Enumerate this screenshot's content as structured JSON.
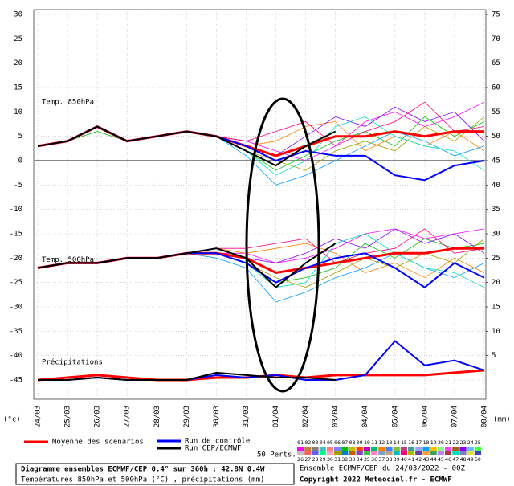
{
  "chart_data": {
    "type": "line",
    "title": "Diagramme ensembles ECMWF/CEP 0.4° sur 360h : 42.8N 0.4W",
    "subtitle": "Températures 850hPa et 500hPa (°C) , précipitations (mm)",
    "run_info": "Ensemble ECMWF/CEP du 24/03/2022 - 00Z",
    "copyright": "Copyright 2022 Meteociel.fr - ECMWF",
    "ylabel": "(°c)",
    "y2label": "(mm)",
    "annotations": [
      "Temp. 850hPa",
      "Temp. 500hPa",
      "Précipitations"
    ],
    "members_title": "50 Perts.",
    "categories": [
      "24/03",
      "25/03",
      "26/03",
      "27/03",
      "28/03",
      "29/03",
      "30/03",
      "31/03",
      "01/04",
      "02/04",
      "03/04",
      "04/04",
      "05/04",
      "06/04",
      "07/04",
      "08/04"
    ],
    "ylim": [
      -45,
      30
    ],
    "yticks": [
      30,
      25,
      20,
      15,
      10,
      5,
      0,
      -5,
      -10,
      -15,
      -20,
      -25,
      -30,
      -35,
      -40,
      -45
    ],
    "y2lim": [
      0,
      75
    ],
    "y2ticks": [
      75,
      70,
      65,
      60,
      55,
      50,
      45,
      40,
      35,
      30,
      25,
      20,
      15,
      10,
      5
    ],
    "grid": true,
    "series": [
      {
        "name": "Moyenne des scénarios",
        "color": "#ff0000",
        "width": 3,
        "values": [
          3,
          4,
          7,
          4,
          5,
          6,
          5,
          3,
          1,
          3,
          5,
          5,
          6,
          5,
          6,
          6
        ]
      },
      {
        "name": "Run de contrôle",
        "color": "#0000ff",
        "width": 2,
        "values": [
          3,
          4,
          7,
          4,
          5,
          6,
          5,
          3,
          0,
          2,
          1,
          1,
          -3,
          -4,
          -1,
          0
        ]
      },
      {
        "name": "Run CEP/ECMWF",
        "color": "#000000",
        "width": 2,
        "values": [
          3,
          4,
          7,
          4,
          5,
          6,
          5,
          2,
          -1,
          3,
          6,
          null,
          null,
          null,
          null,
          null
        ]
      },
      {
        "color": "#ff0000",
        "width": 3,
        "values": [
          -22,
          -21,
          -21,
          -20,
          -20,
          -19,
          -19,
          -20,
          -23,
          -22,
          -21,
          -20,
          -19,
          -19,
          -18,
          -18
        ]
      },
      {
        "color": "#0000ff",
        "width": 2,
        "values": [
          -22,
          -21,
          -21,
          -20,
          -20,
          -19,
          -19,
          -21,
          -25,
          -22,
          -20,
          -19,
          -22,
          -26,
          -21,
          -24
        ]
      },
      {
        "color": "#000000",
        "width": 2,
        "values": [
          -22,
          -21,
          -21,
          -20,
          -20,
          -19,
          -18,
          -20,
          -26,
          -21,
          -17,
          null,
          null,
          null,
          null,
          null
        ]
      },
      {
        "color": "#ff0000",
        "width": 3,
        "axis": "y2",
        "values": [
          0,
          0.5,
          1,
          0.5,
          0,
          0,
          0.5,
          0.5,
          1,
          0.5,
          1,
          1,
          1,
          1,
          1.5,
          2
        ]
      },
      {
        "color": "#0000ff",
        "width": 2,
        "axis": "y2",
        "values": [
          0,
          0,
          0.5,
          0,
          0,
          0,
          1,
          0.5,
          1,
          0,
          0,
          1,
          8,
          3,
          4,
          2
        ]
      },
      {
        "color": "#000000",
        "width": 2,
        "axis": "y2",
        "values": [
          0,
          0,
          0.5,
          0,
          0,
          0,
          1.5,
          1,
          0.5,
          0.5,
          0,
          null,
          null,
          null,
          null,
          null
        ]
      }
    ],
    "perturbations": [
      {
        "color": "#ff00ff",
        "values": [
          3,
          4,
          7,
          4,
          5,
          6,
          5,
          4,
          2,
          0,
          3,
          8,
          10,
          7,
          9,
          12
        ]
      },
      {
        "color": "#00c000",
        "values": [
          3,
          4,
          6,
          4,
          5,
          6,
          5,
          2,
          -2,
          1,
          4,
          6,
          3,
          9,
          5,
          8
        ]
      },
      {
        "color": "#ff8000",
        "values": [
          3,
          4,
          7,
          4,
          5,
          6,
          5,
          3,
          4,
          7,
          8,
          2,
          5,
          3,
          6,
          2
        ]
      },
      {
        "color": "#00a0ff",
        "values": [
          3,
          4,
          7,
          4,
          5,
          6,
          5,
          1,
          -5,
          -3,
          0,
          3,
          6,
          4,
          1,
          3
        ]
      },
      {
        "color": "#8000ff",
        "values": [
          3,
          4,
          7,
          4,
          5,
          6,
          5,
          3,
          1,
          5,
          9,
          7,
          11,
          8,
          10,
          4
        ]
      },
      {
        "color": "#a0a000",
        "values": [
          3,
          4,
          7,
          4,
          5,
          6,
          5,
          2,
          0,
          -2,
          2,
          4,
          2,
          7,
          4,
          9
        ]
      },
      {
        "color": "#ff0080",
        "values": [
          3,
          4,
          7,
          4,
          5,
          6,
          5,
          4,
          6,
          8,
          3,
          6,
          8,
          12,
          6,
          7
        ]
      },
      {
        "color": "#00e0c0",
        "values": [
          3,
          4,
          7,
          4,
          5,
          6,
          5,
          2,
          -3,
          0,
          7,
          9,
          5,
          3,
          2,
          -2
        ]
      },
      {
        "color": "#ff00ff",
        "values": [
          -22,
          -21,
          -21,
          -20,
          -20,
          -19,
          -19,
          -19,
          -21,
          -20,
          -18,
          -15,
          -14,
          -16,
          -15,
          -14
        ]
      },
      {
        "color": "#00c000",
        "values": [
          -22,
          -21,
          -21,
          -20,
          -20,
          -19,
          -19,
          -21,
          -25,
          -24,
          -22,
          -17,
          -20,
          -16,
          -18,
          -17
        ]
      },
      {
        "color": "#ff8000",
        "values": [
          -22,
          -21,
          -21,
          -20,
          -20,
          -19,
          -18,
          -19,
          -18,
          -17,
          -19,
          -23,
          -21,
          -24,
          -20,
          -23
        ]
      },
      {
        "color": "#00a0ff",
        "values": [
          -22,
          -21,
          -21,
          -20,
          -20,
          -19,
          -20,
          -22,
          -29,
          -27,
          -24,
          -22,
          -19,
          -22,
          -24,
          -21
        ]
      },
      {
        "color": "#8000ff",
        "values": [
          -22,
          -21,
          -21,
          -20,
          -20,
          -19,
          -19,
          -20,
          -21,
          -19,
          -16,
          -18,
          -14,
          -17,
          -15,
          -19
        ]
      },
      {
        "color": "#a0a000",
        "values": [
          -22,
          -21,
          -21,
          -20,
          -20,
          -19,
          -19,
          -21,
          -24,
          -26,
          -23,
          -20,
          -22,
          -19,
          -21,
          -16
        ]
      },
      {
        "color": "#ff0080",
        "values": [
          -22,
          -21,
          -21,
          -20,
          -20,
          -19,
          -18,
          -18,
          -17,
          -16,
          -21,
          -19,
          -18,
          -14,
          -19,
          -18
        ]
      },
      {
        "color": "#00e0c0",
        "values": [
          -22,
          -21,
          -21,
          -20,
          -20,
          -19,
          -19,
          -21,
          -26,
          -25,
          -17,
          -15,
          -19,
          -22,
          -23,
          -26
        ]
      }
    ],
    "members": [
      {
        "label": "01",
        "color": "#ff00ff"
      },
      {
        "label": "02",
        "color": "#c08040"
      },
      {
        "label": "03",
        "color": "#808080"
      },
      {
        "label": "04",
        "color": "#40c0c0"
      },
      {
        "label": "05",
        "color": "#ff8080"
      },
      {
        "label": "06",
        "color": "#8080ff"
      },
      {
        "label": "07",
        "color": "#00c000"
      },
      {
        "label": "08",
        "color": "#c0c000"
      },
      {
        "label": "09",
        "color": "#ff4000"
      },
      {
        "label": "10",
        "color": "#c000c0"
      },
      {
        "label": "11",
        "color": "#00c080"
      },
      {
        "label": "12",
        "color": "#ff8000"
      },
      {
        "label": "13",
        "color": "#4080ff"
      },
      {
        "label": "14",
        "color": "#80c040"
      },
      {
        "label": "15",
        "color": "#c04080"
      },
      {
        "label": "16",
        "color": "#40a0a0"
      },
      {
        "label": "17",
        "color": "#a0a0ff"
      },
      {
        "label": "18",
        "color": "#00a0ff"
      },
      {
        "label": "19",
        "color": "#ffc000"
      },
      {
        "label": "20",
        "color": "#80ff80"
      },
      {
        "label": "21",
        "color": "#ff40ff"
      },
      {
        "label": "22",
        "color": "#a06020"
      },
      {
        "label": "23",
        "color": "#8000ff"
      },
      {
        "label": "24",
        "color": "#60c0ff"
      },
      {
        "label": "25",
        "color": "#40ff40"
      },
      {
        "label": "26",
        "color": "#c0c0c0"
      },
      {
        "label": "27",
        "color": "#ff6060"
      },
      {
        "label": "28",
        "color": "#6060ff"
      },
      {
        "label": "29",
        "color": "#00ff80"
      },
      {
        "label": "30",
        "color": "#ffa0c0"
      },
      {
        "label": "31",
        "color": "#a0a000"
      },
      {
        "label": "32",
        "color": "#0080c0"
      },
      {
        "label": "33",
        "color": "#c06000"
      },
      {
        "label": "34",
        "color": "#8040c0"
      },
      {
        "label": "35",
        "color": "#40c040"
      },
      {
        "label": "36",
        "color": "#ff80c0"
      },
      {
        "label": "37",
        "color": "#80a0c0"
      },
      {
        "label": "38",
        "color": "#c0a080"
      },
      {
        "label": "39",
        "color": "#00c0c0"
      },
      {
        "label": "40",
        "color": "#ff0080"
      },
      {
        "label": "41",
        "color": "#a0c000"
      },
      {
        "label": "42",
        "color": "#6040a0"
      },
      {
        "label": "43",
        "color": "#ffa040"
      },
      {
        "label": "44",
        "color": "#40a060"
      },
      {
        "label": "45",
        "color": "#c080ff"
      },
      {
        "label": "46",
        "color": "#a04040"
      },
      {
        "label": "47",
        "color": "#00e0c0"
      },
      {
        "label": "48",
        "color": "#8080c0"
      },
      {
        "label": "49",
        "color": "#e0e040"
      },
      {
        "label": "50",
        "color": "#4040c0"
      }
    ]
  }
}
